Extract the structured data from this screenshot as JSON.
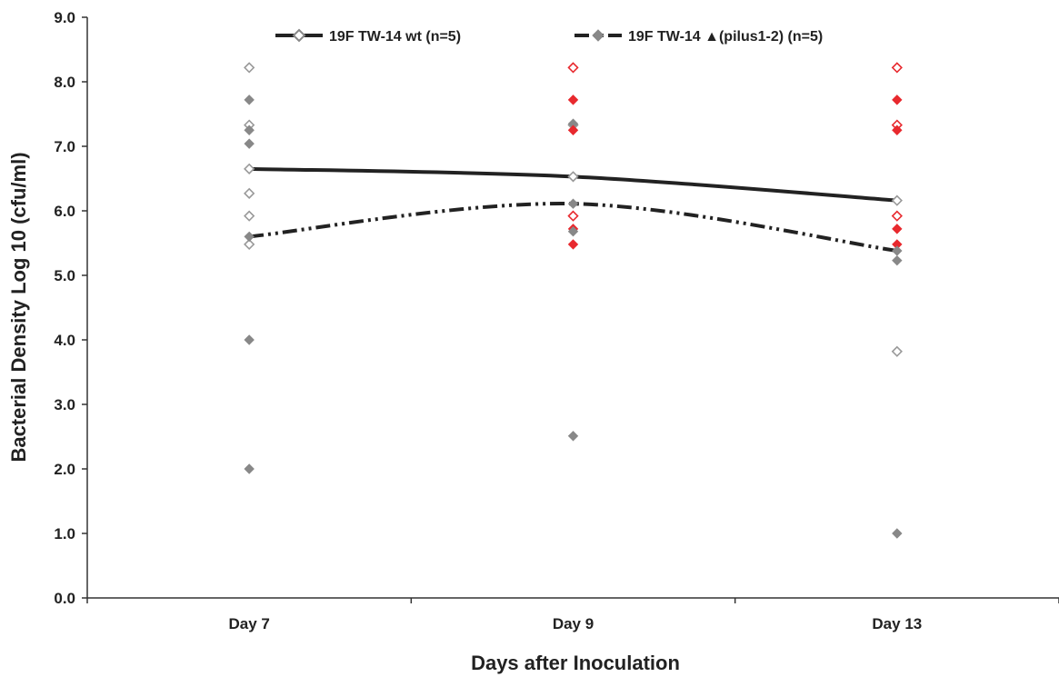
{
  "chart_data": {
    "type": "scatter",
    "title": "",
    "xlabel": "Days after Inoculation",
    "ylabel": "Bacterial Density Log 10 (cfu/ml)",
    "categories": [
      "Day 7",
      "Day 9",
      "Day 13"
    ],
    "ylim": [
      0,
      9
    ],
    "yticks": [
      "0.0",
      "1.0",
      "2.0",
      "3.0",
      "4.0",
      "5.0",
      "6.0",
      "7.0",
      "8.0",
      "9.0"
    ],
    "grid": false,
    "legend_position": "top",
    "series": [
      {
        "name": "19F TW-14 wt (n=5)",
        "marker": "open-diamond",
        "line_style": "solid",
        "mean": [
          6.65,
          6.53,
          6.16
        ],
        "points": [
          {
            "x": "Day 7",
            "y": 8.22,
            "color": "#999999"
          },
          {
            "x": "Day 7",
            "y": 7.33,
            "color": "#999999"
          },
          {
            "x": "Day 7",
            "y": 6.65,
            "color": "#999999"
          },
          {
            "x": "Day 7",
            "y": 6.27,
            "color": "#999999"
          },
          {
            "x": "Day 7",
            "y": 5.92,
            "color": "#999999"
          },
          {
            "x": "Day 7",
            "y": 5.48,
            "color": "#999999"
          },
          {
            "x": "Day 9",
            "y": 8.22,
            "color": "#e8292e"
          },
          {
            "x": "Day 9",
            "y": 7.33,
            "color": "#999999"
          },
          {
            "x": "Day 9",
            "y": 6.53,
            "color": "#999999"
          },
          {
            "x": "Day 9",
            "y": 5.92,
            "color": "#e8292e"
          },
          {
            "x": "Day 13",
            "y": 8.22,
            "color": "#e8292e"
          },
          {
            "x": "Day 13",
            "y": 7.33,
            "color": "#e8292e"
          },
          {
            "x": "Day 13",
            "y": 6.16,
            "color": "#999999"
          },
          {
            "x": "Day 13",
            "y": 5.92,
            "color": "#e8292e"
          },
          {
            "x": "Day 13",
            "y": 3.82,
            "color": "#999999"
          }
        ]
      },
      {
        "name": "19F TW-14 ▲(pilus1-2) (n=5)",
        "marker": "filled-diamond",
        "line_style": "dash-dot-dot",
        "mean": [
          5.6,
          6.11,
          5.38
        ],
        "points": [
          {
            "x": "Day 7",
            "y": 7.72,
            "color": "#888888"
          },
          {
            "x": "Day 7",
            "y": 7.25,
            "color": "#888888"
          },
          {
            "x": "Day 7",
            "y": 7.04,
            "color": "#888888"
          },
          {
            "x": "Day 7",
            "y": 5.6,
            "color": "#888888"
          },
          {
            "x": "Day 7",
            "y": 4.0,
            "color": "#888888"
          },
          {
            "x": "Day 7",
            "y": 2.0,
            "color": "#888888"
          },
          {
            "x": "Day 9",
            "y": 7.72,
            "color": "#e8292e"
          },
          {
            "x": "Day 9",
            "y": 7.35,
            "color": "#888888"
          },
          {
            "x": "Day 9",
            "y": 7.25,
            "color": "#e8292e"
          },
          {
            "x": "Day 9",
            "y": 6.11,
            "color": "#888888"
          },
          {
            "x": "Day 9",
            "y": 5.72,
            "color": "#e8292e"
          },
          {
            "x": "Day 9",
            "y": 5.68,
            "color": "#888888"
          },
          {
            "x": "Day 9",
            "y": 5.48,
            "color": "#e8292e"
          },
          {
            "x": "Day 9",
            "y": 2.51,
            "color": "#888888"
          },
          {
            "x": "Day 13",
            "y": 7.72,
            "color": "#e8292e"
          },
          {
            "x": "Day 13",
            "y": 7.25,
            "color": "#e8292e"
          },
          {
            "x": "Day 13",
            "y": 5.72,
            "color": "#e8292e"
          },
          {
            "x": "Day 13",
            "y": 5.48,
            "color": "#e8292e"
          },
          {
            "x": "Day 13",
            "y": 5.38,
            "color": "#888888"
          },
          {
            "x": "Day 13",
            "y": 5.23,
            "color": "#888888"
          },
          {
            "x": "Day 13",
            "y": 1.0,
            "color": "#888888"
          }
        ]
      }
    ]
  }
}
